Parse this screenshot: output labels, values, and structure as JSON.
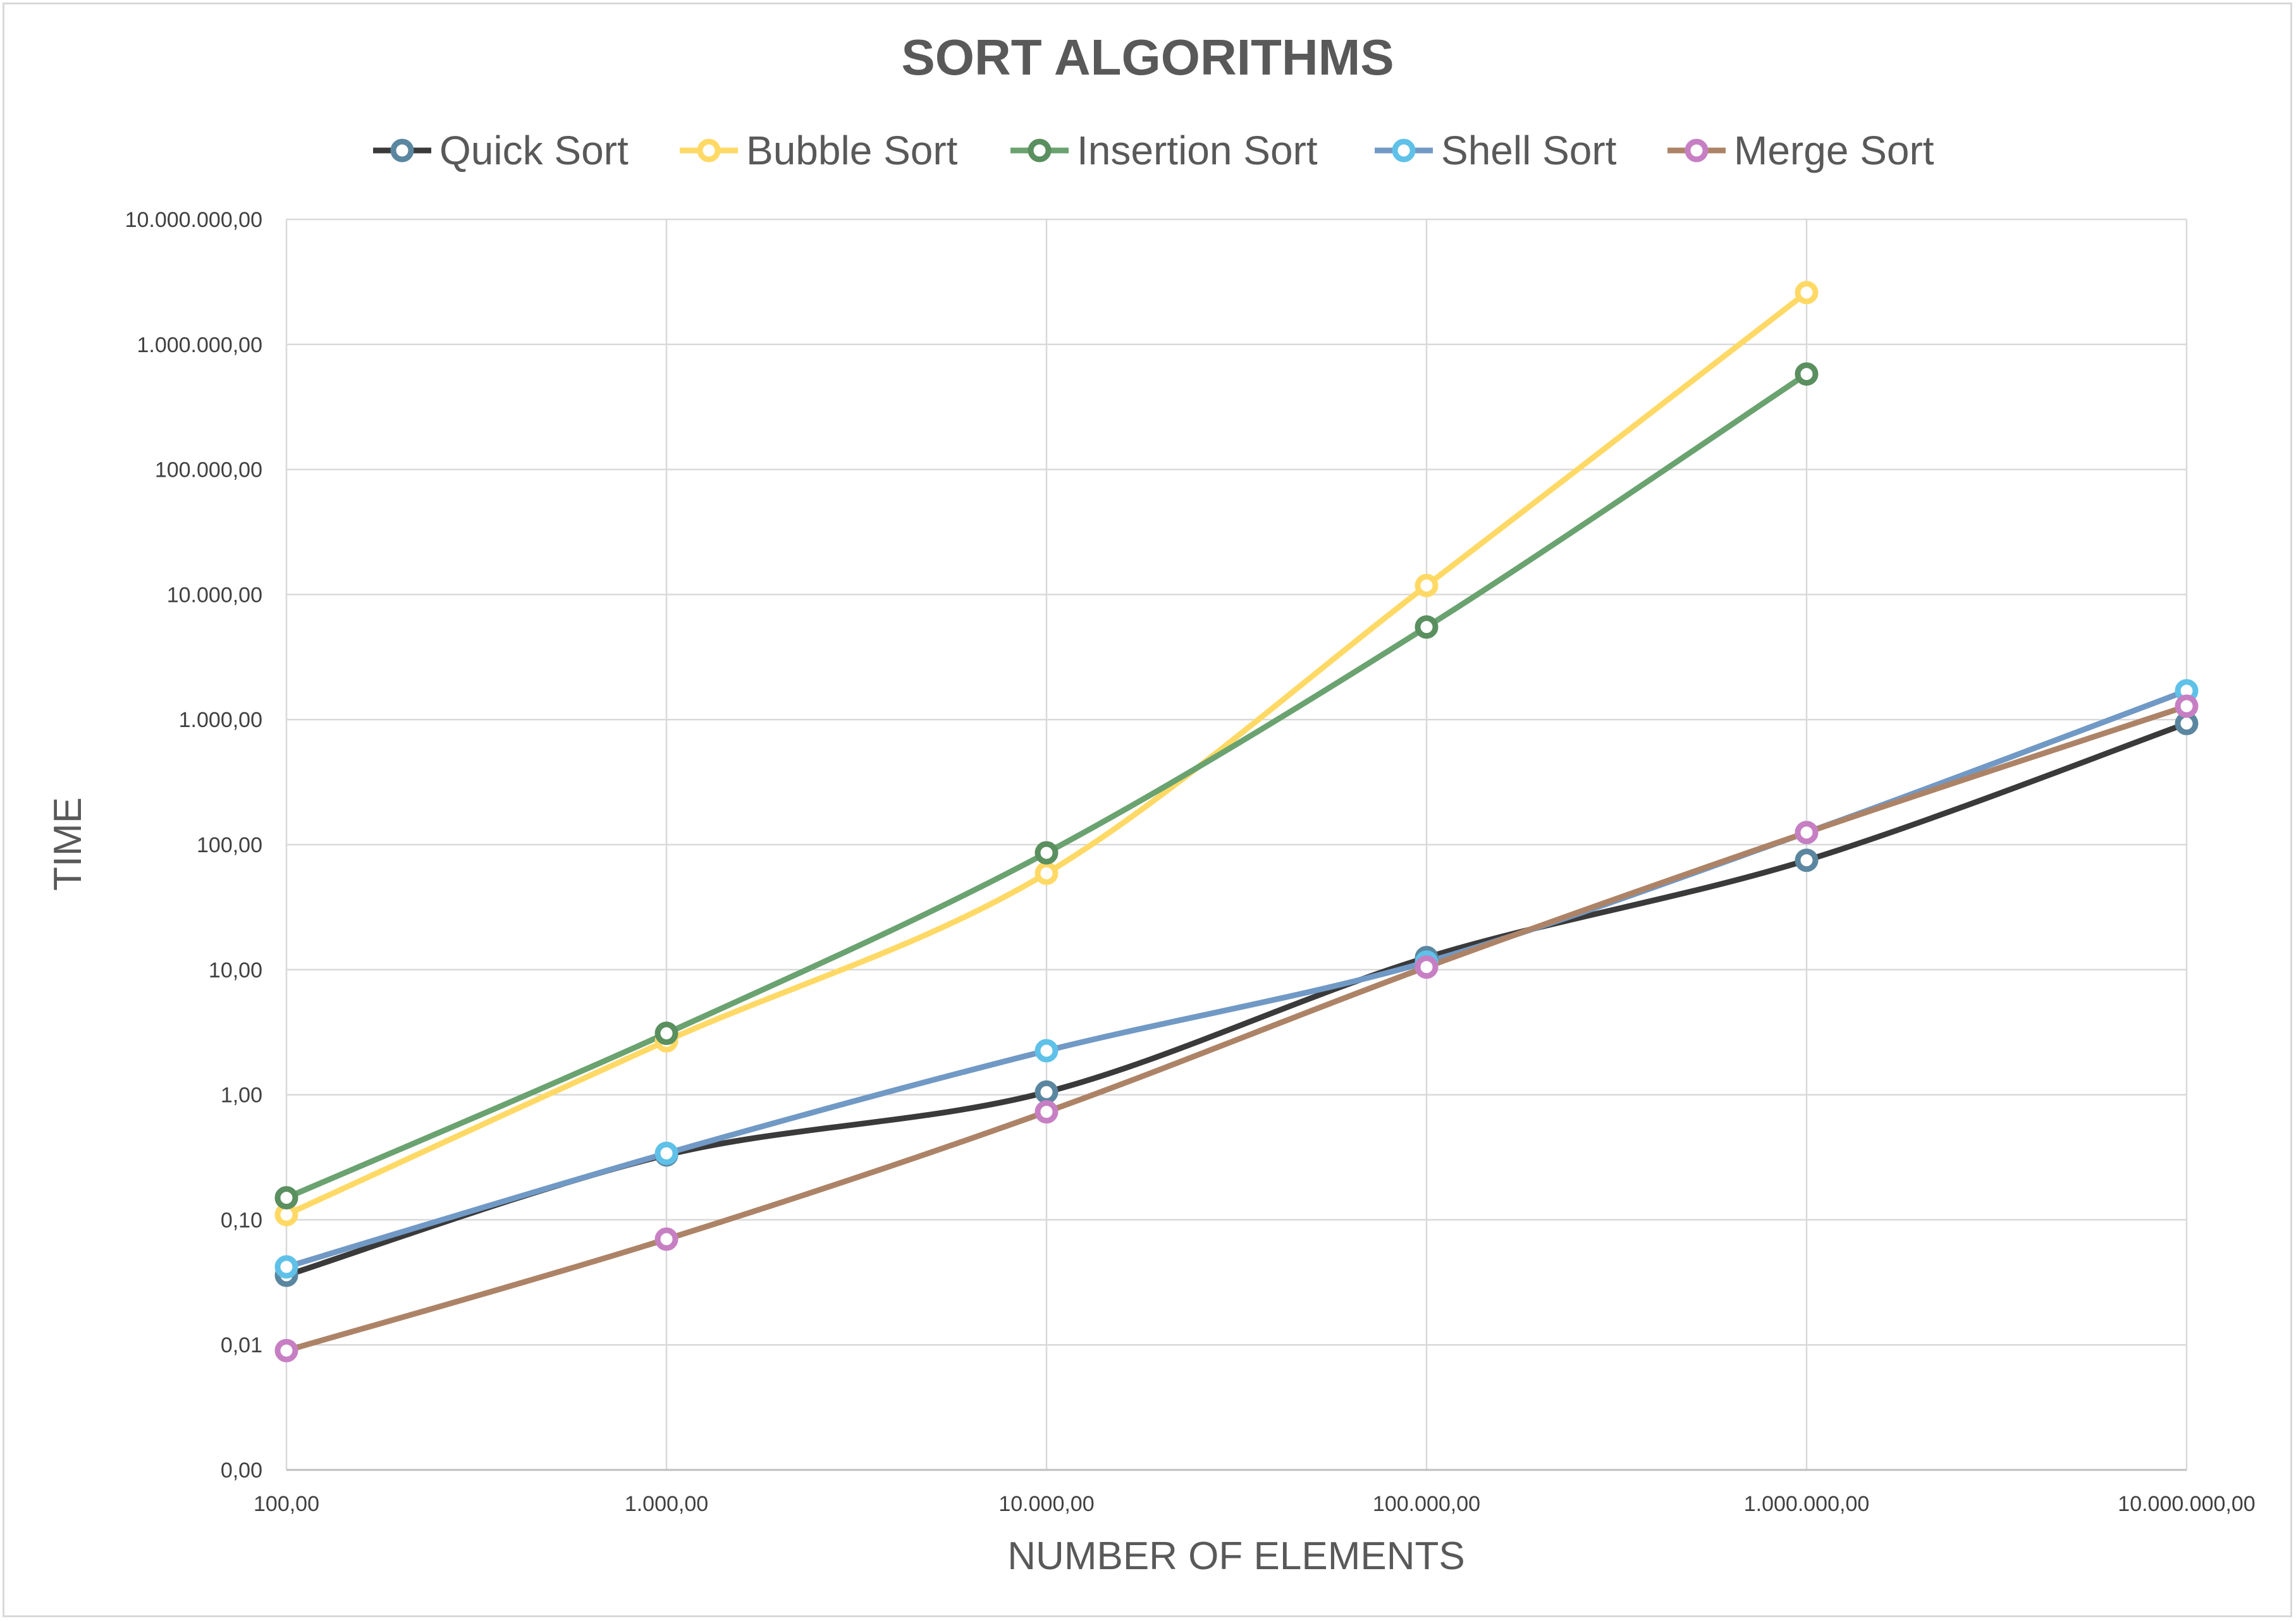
{
  "chart_data": {
    "type": "line",
    "title": "SORT ALGORITHMS",
    "xlabel": "NUMBER OF ELEMENTS",
    "ylabel": "TIME",
    "x_scale": "log",
    "y_scale": "log",
    "xlim": [
      100,
      10000000
    ],
    "ylim": [
      0.001,
      10000000
    ],
    "x_ticks": [
      100,
      1000,
      10000,
      100000,
      1000000,
      10000000
    ],
    "x_tick_labels": [
      "100,00",
      "1.000,00",
      "10.000,00",
      "100.000,00",
      "1.000.000,00",
      "10.000.000,00"
    ],
    "y_ticks": [
      0.001,
      0.01,
      0.1,
      1,
      10,
      100,
      1000,
      10000,
      100000,
      1000000,
      10000000
    ],
    "y_tick_labels": [
      "0,00",
      "0,01",
      "0,10",
      "1,00",
      "10,00",
      "100,00",
      "1.000,00",
      "10.000,00",
      "100.000,00",
      "1.000.000,00",
      "10.000.000,00"
    ],
    "grid": true,
    "legend_position": "top",
    "series": [
      {
        "name": "Quick Sort",
        "color": "#3a3a3a",
        "marker_color": "#5b86a0",
        "x": [
          100,
          1000,
          10000,
          100000,
          1000000,
          10000000
        ],
        "y": [
          0.036,
          0.33,
          1.05,
          12.5,
          75,
          930
        ]
      },
      {
        "name": "Bubble Sort",
        "color": "#ffd966",
        "marker_color": "#ffd966",
        "x": [
          100,
          1000,
          10000,
          100000,
          1000000
        ],
        "y": [
          0.11,
          2.7,
          59,
          11800,
          2600000
        ]
      },
      {
        "name": "Insertion Sort",
        "color": "#6aa270",
        "marker_color": "#5a8f5f",
        "x": [
          100,
          1000,
          10000,
          100000,
          1000000
        ],
        "y": [
          0.15,
          3.1,
          86,
          5500,
          580000
        ]
      },
      {
        "name": "Shell Sort",
        "color": "#7199c5",
        "marker_color": "#5fc1e8",
        "x": [
          100,
          1000,
          10000,
          100000,
          1000000,
          10000000
        ],
        "y": [
          0.042,
          0.34,
          2.25,
          11.5,
          125,
          1700
        ]
      },
      {
        "name": "Merge Sort",
        "color": "#ad8367",
        "marker_color": "#c77fc3",
        "x": [
          100,
          1000,
          10000,
          100000,
          1000000,
          10000000
        ],
        "y": [
          0.009,
          0.07,
          0.73,
          10.5,
          125,
          1280
        ]
      }
    ]
  }
}
